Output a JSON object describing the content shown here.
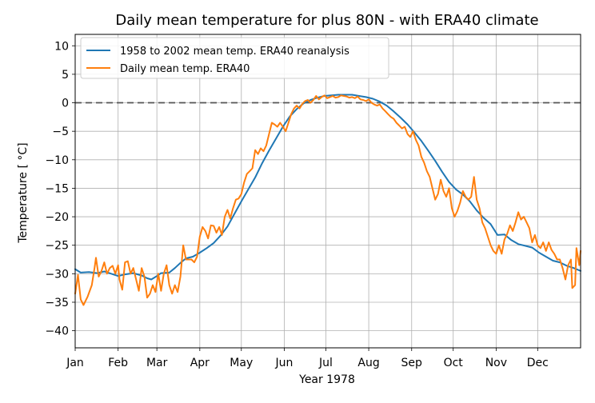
{
  "chart_data": {
    "type": "line",
    "title": "Daily mean temperature for plus 80N - with ERA40 climate",
    "xlabel": "Year 1978",
    "ylabel": "Temperature [$^\\circ$C]",
    "ylabel_display": "Temperature [ °C]",
    "xlim": [
      0,
      365
    ],
    "ylim": [
      -43,
      12
    ],
    "yticks": [
      10,
      5,
      0,
      -5,
      -10,
      -15,
      -20,
      -25,
      -30,
      -35,
      -40
    ],
    "ytick_labels": [
      "10",
      "5",
      "0",
      "−5",
      "−10",
      "−15",
      "−20",
      "−25",
      "−30",
      "−35",
      "−40"
    ],
    "xticks": [
      0,
      31,
      59,
      90,
      120,
      151,
      181,
      212,
      243,
      273,
      304,
      334
    ],
    "xtick_labels": [
      "Jan",
      "Feb",
      "Mar",
      "Apr",
      "May",
      "Jun",
      "Jul",
      "Aug",
      "Sep",
      "Oct",
      "Nov",
      "Dec"
    ],
    "grid": true,
    "legend_position": "upper-left",
    "reference_line": {
      "y": 0,
      "style": "dashed",
      "color": "#555555"
    },
    "series": [
      {
        "name": "1958 to 2002 mean temp. ERA40 reanalysis",
        "color": "#1f77b4",
        "points": [
          [
            0,
            -29.2
          ],
          [
            4,
            -29.8
          ],
          [
            10,
            -29.7
          ],
          [
            16,
            -29.9
          ],
          [
            21,
            -29.6
          ],
          [
            26,
            -30.0
          ],
          [
            31,
            -30.4
          ],
          [
            36,
            -30.1
          ],
          [
            42,
            -29.9
          ],
          [
            48,
            -30.3
          ],
          [
            52,
            -30.8
          ],
          [
            55,
            -31.0
          ],
          [
            59,
            -30.4
          ],
          [
            62,
            -29.9
          ],
          [
            68,
            -29.8
          ],
          [
            72,
            -29.0
          ],
          [
            76,
            -28.1
          ],
          [
            80,
            -27.3
          ],
          [
            85,
            -27.0
          ],
          [
            90,
            -26.3
          ],
          [
            95,
            -25.5
          ],
          [
            100,
            -24.6
          ],
          [
            105,
            -23.3
          ],
          [
            110,
            -21.7
          ],
          [
            115,
            -19.5
          ],
          [
            120,
            -17.3
          ],
          [
            125,
            -15.2
          ],
          [
            130,
            -13.1
          ],
          [
            135,
            -10.6
          ],
          [
            140,
            -8.4
          ],
          [
            145,
            -6.3
          ],
          [
            150,
            -4.2
          ],
          [
            155,
            -2.4
          ],
          [
            160,
            -1.1
          ],
          [
            165,
            -0.1
          ],
          [
            170,
            0.5
          ],
          [
            175,
            0.9
          ],
          [
            180,
            1.2
          ],
          [
            185,
            1.3
          ],
          [
            190,
            1.4
          ],
          [
            195,
            1.4
          ],
          [
            200,
            1.4
          ],
          [
            205,
            1.2
          ],
          [
            210,
            1.0
          ],
          [
            215,
            0.7
          ],
          [
            220,
            0.2
          ],
          [
            225,
            -0.5
          ],
          [
            230,
            -1.5
          ],
          [
            235,
            -2.6
          ],
          [
            240,
            -3.8
          ],
          [
            245,
            -5.2
          ],
          [
            250,
            -6.7
          ],
          [
            255,
            -8.4
          ],
          [
            260,
            -10.2
          ],
          [
            265,
            -12.1
          ],
          [
            270,
            -13.9
          ],
          [
            275,
            -15.2
          ],
          [
            280,
            -16.1
          ],
          [
            285,
            -17.3
          ],
          [
            290,
            -18.9
          ],
          [
            295,
            -20.2
          ],
          [
            300,
            -21.3
          ],
          [
            305,
            -23.2
          ],
          [
            310,
            -23.1
          ],
          [
            315,
            -24.1
          ],
          [
            320,
            -24.8
          ],
          [
            325,
            -25.1
          ],
          [
            330,
            -25.4
          ],
          [
            335,
            -26.3
          ],
          [
            340,
            -27.0
          ],
          [
            345,
            -27.7
          ],
          [
            350,
            -28.0
          ],
          [
            355,
            -28.6
          ],
          [
            360,
            -29.0
          ],
          [
            365,
            -29.5
          ]
        ]
      },
      {
        "name": "Daily mean temp. ERA40",
        "color": "#ff7f0e",
        "points": [
          [
            0,
            -33.5
          ],
          [
            2,
            -30.2
          ],
          [
            4,
            -34.5
          ],
          [
            6,
            -35.5
          ],
          [
            9,
            -34.0
          ],
          [
            12,
            -32.0
          ],
          [
            14,
            -29.0
          ],
          [
            15,
            -27.2
          ],
          [
            17,
            -30.5
          ],
          [
            19,
            -29.5
          ],
          [
            21,
            -28.0
          ],
          [
            23,
            -30.0
          ],
          [
            25,
            -29.0
          ],
          [
            27,
            -28.6
          ],
          [
            29,
            -30.0
          ],
          [
            31,
            -28.5
          ],
          [
            32,
            -31.0
          ],
          [
            34,
            -32.8
          ],
          [
            36,
            -28.0
          ],
          [
            38,
            -27.8
          ],
          [
            40,
            -30.0
          ],
          [
            42,
            -29.0
          ],
          [
            44,
            -31.0
          ],
          [
            46,
            -33.0
          ],
          [
            48,
            -29.0
          ],
          [
            50,
            -30.5
          ],
          [
            52,
            -34.2
          ],
          [
            54,
            -33.5
          ],
          [
            56,
            -32.0
          ],
          [
            58,
            -33.2
          ],
          [
            60,
            -30.0
          ],
          [
            62,
            -33.0
          ],
          [
            64,
            -30.0
          ],
          [
            66,
            -28.5
          ],
          [
            68,
            -32.0
          ],
          [
            70,
            -33.5
          ],
          [
            72,
            -32.0
          ],
          [
            74,
            -33.2
          ],
          [
            76,
            -30.5
          ],
          [
            78,
            -25.0
          ],
          [
            80,
            -27.5
          ],
          [
            82,
            -27.5
          ],
          [
            84,
            -27.5
          ],
          [
            86,
            -28.0
          ],
          [
            88,
            -27.0
          ],
          [
            90,
            -23.5
          ],
          [
            92,
            -21.8
          ],
          [
            94,
            -22.5
          ],
          [
            96,
            -23.8
          ],
          [
            98,
            -21.5
          ],
          [
            100,
            -21.6
          ],
          [
            102,
            -22.8
          ],
          [
            104,
            -21.8
          ],
          [
            106,
            -23.2
          ],
          [
            108,
            -20.0
          ],
          [
            110,
            -18.8
          ],
          [
            112,
            -20.3
          ],
          [
            114,
            -18.5
          ],
          [
            116,
            -17.0
          ],
          [
            118,
            -16.8
          ],
          [
            120,
            -16.0
          ],
          [
            122,
            -14.0
          ],
          [
            124,
            -12.5
          ],
          [
            126,
            -12.0
          ],
          [
            128,
            -11.5
          ],
          [
            130,
            -8.3
          ],
          [
            132,
            -9.0
          ],
          [
            134,
            -8.0
          ],
          [
            136,
            -8.5
          ],
          [
            138,
            -7.5
          ],
          [
            140,
            -5.5
          ],
          [
            142,
            -3.5
          ],
          [
            144,
            -3.8
          ],
          [
            146,
            -4.2
          ],
          [
            148,
            -3.5
          ],
          [
            150,
            -4.2
          ],
          [
            152,
            -5.0
          ],
          [
            154,
            -3.5
          ],
          [
            156,
            -2.0
          ],
          [
            158,
            -1.0
          ],
          [
            160,
            -0.5
          ],
          [
            162,
            -1.0
          ],
          [
            164,
            -0.2
          ],
          [
            166,
            0.3
          ],
          [
            168,
            0.5
          ],
          [
            170,
            0.0
          ],
          [
            172,
            0.5
          ],
          [
            174,
            1.2
          ],
          [
            176,
            0.6
          ],
          [
            178,
            1.0
          ],
          [
            180,
            1.3
          ],
          [
            182,
            0.8
          ],
          [
            184,
            1.0
          ],
          [
            186,
            1.2
          ],
          [
            188,
            0.9
          ],
          [
            190,
            1.0
          ],
          [
            192,
            1.3
          ],
          [
            194,
            1.2
          ],
          [
            196,
            1.1
          ],
          [
            198,
            0.9
          ],
          [
            200,
            1.0
          ],
          [
            202,
            0.8
          ],
          [
            204,
            1.1
          ],
          [
            206,
            0.6
          ],
          [
            208,
            0.5
          ],
          [
            210,
            0.3
          ],
          [
            212,
            0.6
          ],
          [
            214,
            0.0
          ],
          [
            216,
            -0.3
          ],
          [
            218,
            -0.5
          ],
          [
            220,
            -0.3
          ],
          [
            222,
            -1.0
          ],
          [
            224,
            -1.5
          ],
          [
            226,
            -2.0
          ],
          [
            228,
            -2.5
          ],
          [
            230,
            -2.8
          ],
          [
            232,
            -3.5
          ],
          [
            234,
            -4.0
          ],
          [
            236,
            -4.5
          ],
          [
            238,
            -4.2
          ],
          [
            240,
            -5.5
          ],
          [
            242,
            -6.0
          ],
          [
            244,
            -5.0
          ],
          [
            246,
            -6.5
          ],
          [
            248,
            -7.5
          ],
          [
            250,
            -9.5
          ],
          [
            252,
            -10.5
          ],
          [
            254,
            -12.0
          ],
          [
            256,
            -13.0
          ],
          [
            258,
            -15.0
          ],
          [
            260,
            -17.0
          ],
          [
            262,
            -16.0
          ],
          [
            264,
            -13.5
          ],
          [
            266,
            -15.5
          ],
          [
            268,
            -16.5
          ],
          [
            270,
            -15.0
          ],
          [
            272,
            -18.5
          ],
          [
            274,
            -20.0
          ],
          [
            276,
            -19.0
          ],
          [
            278,
            -17.5
          ],
          [
            280,
            -15.5
          ],
          [
            282,
            -16.5
          ],
          [
            284,
            -17.0
          ],
          [
            286,
            -16.5
          ],
          [
            288,
            -13.0
          ],
          [
            290,
            -17.0
          ],
          [
            292,
            -18.5
          ],
          [
            294,
            -21.0
          ],
          [
            296,
            -22.0
          ],
          [
            298,
            -23.5
          ],
          [
            300,
            -25.0
          ],
          [
            302,
            -26.0
          ],
          [
            304,
            -26.5
          ],
          [
            306,
            -25.0
          ],
          [
            308,
            -26.5
          ],
          [
            310,
            -24.0
          ],
          [
            312,
            -23.0
          ],
          [
            314,
            -21.5
          ],
          [
            316,
            -22.5
          ],
          [
            318,
            -21.0
          ],
          [
            320,
            -19.2
          ],
          [
            322,
            -20.5
          ],
          [
            324,
            -20.0
          ],
          [
            326,
            -21.0
          ],
          [
            328,
            -22.0
          ],
          [
            330,
            -24.5
          ],
          [
            332,
            -23.2
          ],
          [
            334,
            -25.0
          ],
          [
            336,
            -25.5
          ],
          [
            338,
            -24.5
          ],
          [
            340,
            -26.0
          ],
          [
            342,
            -24.5
          ],
          [
            344,
            -25.8
          ],
          [
            346,
            -26.5
          ],
          [
            348,
            -27.5
          ],
          [
            350,
            -27.5
          ],
          [
            352,
            -29.0
          ],
          [
            354,
            -31.0
          ],
          [
            356,
            -28.5
          ],
          [
            358,
            -27.5
          ],
          [
            359,
            -32.5
          ],
          [
            361,
            -32.0
          ],
          [
            362,
            -25.5
          ],
          [
            364,
            -28.5
          ],
          [
            365,
            -26.0
          ]
        ]
      }
    ]
  }
}
